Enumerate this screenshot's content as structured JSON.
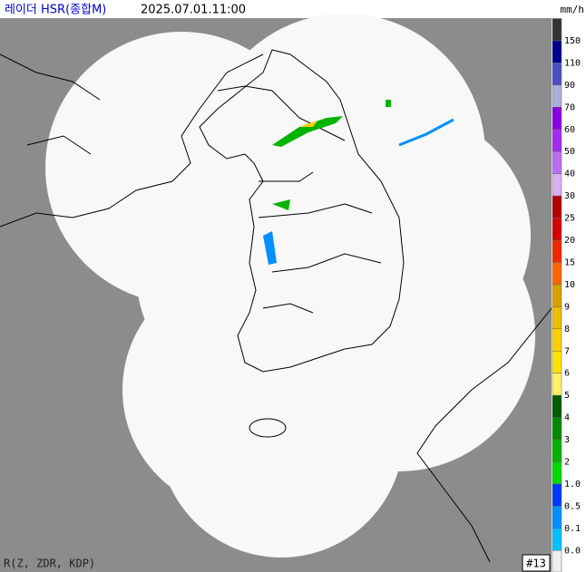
{
  "header": {
    "title": "레이더 HSR(종합M)",
    "time": "2025.07.01.11:00",
    "unit": "mm/h"
  },
  "legend": [
    {
      "label": "150",
      "color": "#333333"
    },
    {
      "label": "110",
      "color": "#000090"
    },
    {
      "label": "90",
      "color": "#4c4ec8"
    },
    {
      "label": "70",
      "color": "#a8b0dc"
    },
    {
      "label": "60",
      "color": "#8a00e0"
    },
    {
      "label": "50",
      "color": "#a22cf0"
    },
    {
      "label": "40",
      "color": "#bb6ef0"
    },
    {
      "label": "30",
      "color": "#d9aef2"
    },
    {
      "label": "25",
      "color": "#b40000"
    },
    {
      "label": "20",
      "color": "#d40000"
    },
    {
      "label": "15",
      "color": "#f02800"
    },
    {
      "label": "10",
      "color": "#ff6600"
    },
    {
      "label": "9",
      "color": "#d8a000"
    },
    {
      "label": "8",
      "color": "#ecbc00"
    },
    {
      "label": "7",
      "color": "#ffd000"
    },
    {
      "label": "6",
      "color": "#ffe400"
    },
    {
      "label": "5",
      "color": "#fff066"
    },
    {
      "label": "4",
      "color": "#005a00"
    },
    {
      "label": "3",
      "color": "#008a00"
    },
    {
      "label": "2",
      "color": "#00b400"
    },
    {
      "label": "1.0",
      "color": "#00dc00"
    },
    {
      "label": "0.5",
      "color": "#0038ff"
    },
    {
      "label": "0.1",
      "color": "#0090ff"
    },
    {
      "label": "0.0",
      "color": "#00c0ff"
    }
  ],
  "footer": {
    "variables": "R(Z, ZDR, KDP)",
    "id": "#13"
  }
}
